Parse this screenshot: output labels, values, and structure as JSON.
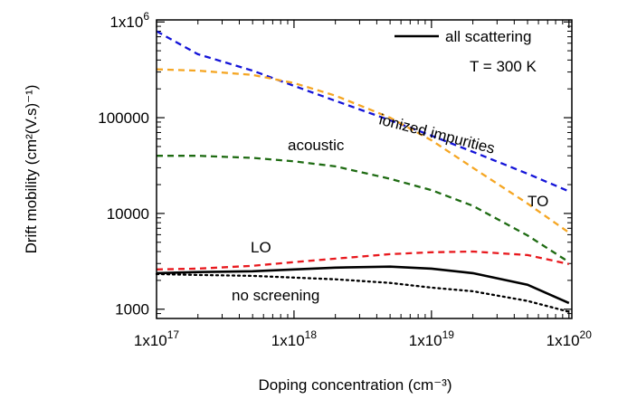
{
  "chart_data": {
    "type": "line",
    "x_label": "Doping concentration (cm⁻³)",
    "y_label": "Drift mobility (cm²(V.s)⁻¹)",
    "x_log": true,
    "y_log": true,
    "xlim": [
      1e+17,
      1.05e+20
    ],
    "ylim": [
      800,
      1050000
    ],
    "xticks": [
      {
        "value": 1e+17,
        "label": "1x10",
        "exponent": "17"
      },
      {
        "value": 1e+18,
        "label": "1x10",
        "exponent": "18"
      },
      {
        "value": 1e+19,
        "label": "1x10",
        "exponent": "19"
      },
      {
        "value": 1e+20,
        "label": "1x10",
        "exponent": "20"
      }
    ],
    "yticks": [
      1000,
      10000,
      100000,
      {
        "value": 1000000,
        "label": "1x10",
        "exponent": "6"
      }
    ],
    "x": [
      1e+17,
      2e+17,
      5e+17,
      1e+18,
      2e+18,
      5e+18,
      1e+19,
      2e+19,
      5e+19,
      1e+20
    ],
    "series": [
      {
        "name": "all scattering",
        "color": "#000000",
        "dash": "solid",
        "legend": true,
        "values": [
          2380,
          2440,
          2490,
          2600,
          2720,
          2780,
          2650,
          2380,
          1800,
          1160
        ]
      },
      {
        "name": "no screening",
        "color": "#000000",
        "dash": "dotted",
        "legend": false,
        "values": [
          2330,
          2280,
          2230,
          2140,
          2050,
          1880,
          1680,
          1540,
          1220,
          940
        ]
      },
      {
        "name": "LO",
        "color": "#e8191e",
        "dash": "dashed",
        "legend": false,
        "values": [
          2600,
          2650,
          2840,
          3100,
          3370,
          3760,
          3930,
          4000,
          3680,
          2960
        ]
      },
      {
        "name": "acoustic",
        "color": "#1e6b12",
        "dash": "dashed",
        "legend": false,
        "values": [
          40000,
          40000,
          38000,
          35000,
          31000,
          23000,
          17500,
          12000,
          5900,
          3100
        ]
      },
      {
        "name": "ionized impurities",
        "color": "#1414d8",
        "dash": "dashed",
        "legend": false,
        "values": [
          800000,
          460000,
          310000,
          215000,
          150000,
          94000,
          65000,
          44000,
          26000,
          17000
        ]
      },
      {
        "name": "TO",
        "color": "#f5a623",
        "dash": "dashed",
        "legend": false,
        "values": [
          320000,
          310000,
          280000,
          230000,
          170000,
          100000,
          58000,
          30000,
          12700,
          6300
        ]
      }
    ],
    "annotation": "T = 300 K"
  }
}
